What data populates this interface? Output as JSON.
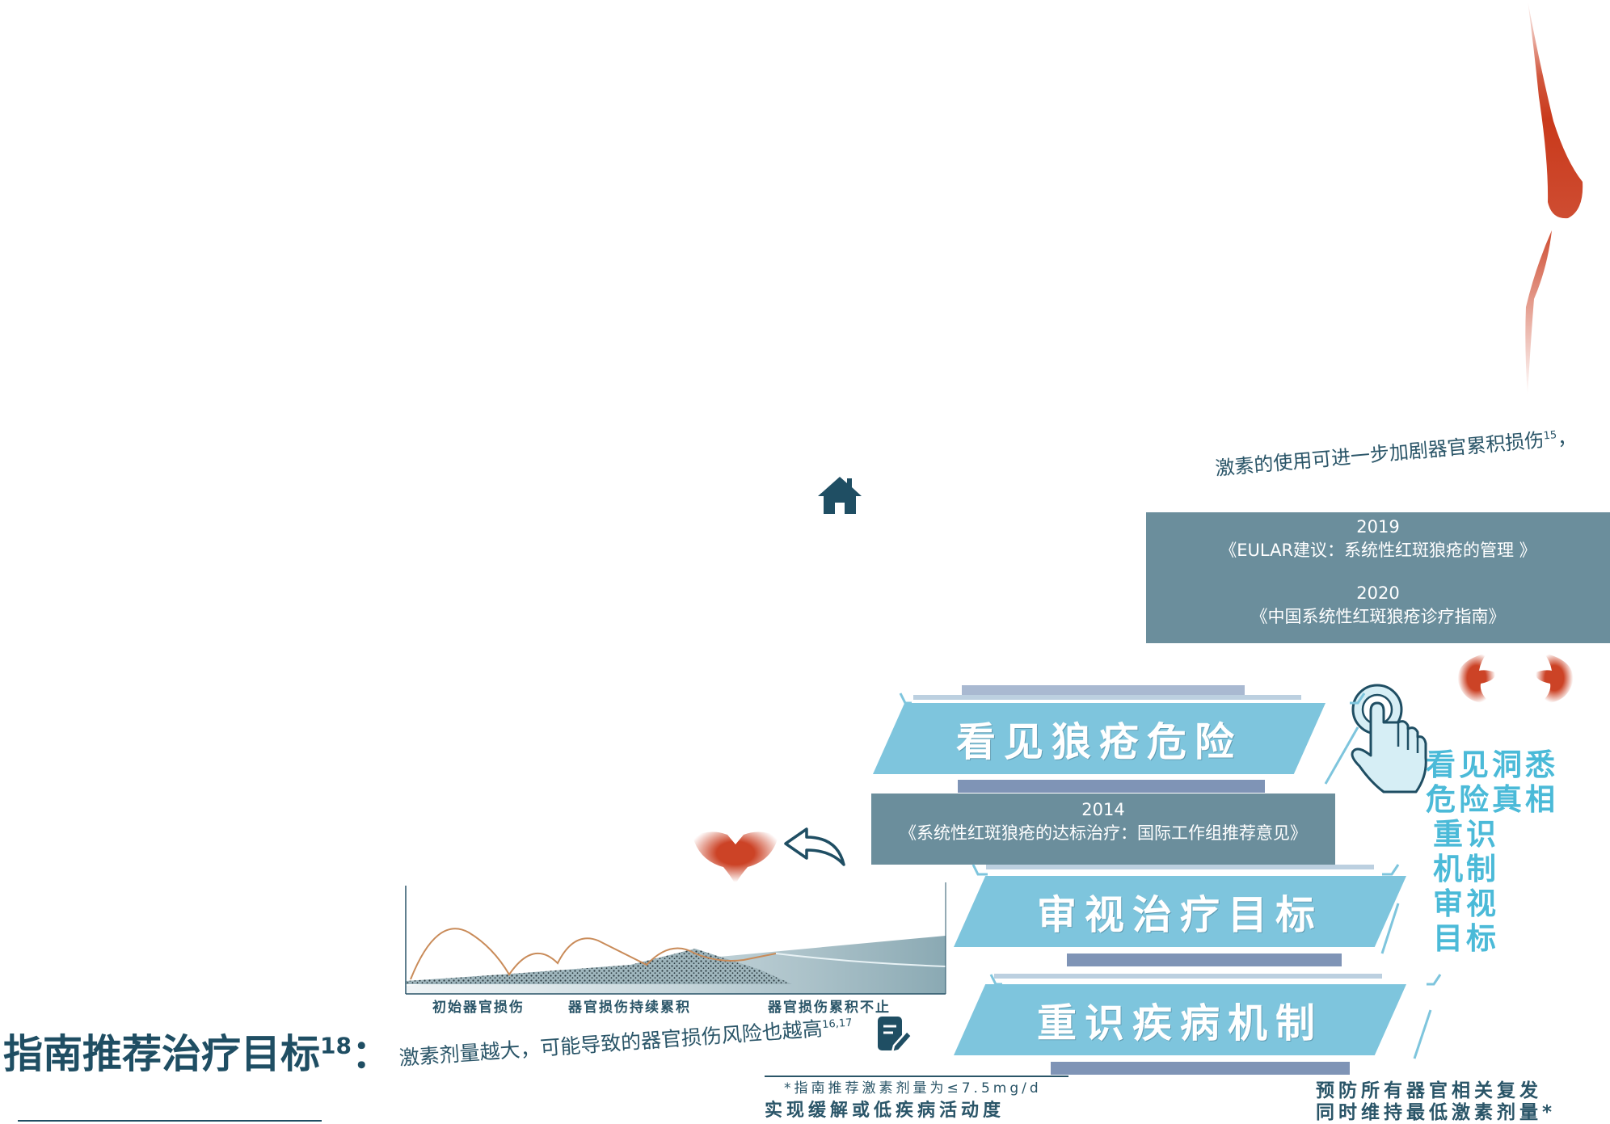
{
  "header_note": {
    "text": "激素的使用可进一步加剧器官累积损伤",
    "ref": "15",
    "tail": "，"
  },
  "guidelines": [
    {
      "year": "2019",
      "name": "《EULAR建议：系统性红斑狼疮的管理 》"
    },
    {
      "year": "2020",
      "name": "《中国系统性红斑狼疮诊疗指南》"
    },
    {
      "year": "2014",
      "name": "《系统性红斑狼疮的达标治疗：国际工作组推荐意见》"
    }
  ],
  "steps": [
    {
      "label": "看见狼疮危险"
    },
    {
      "label": "审视治疗目标"
    },
    {
      "label": "重识疾病机制"
    }
  ],
  "side_text": {
    "line1": "看见洞悉",
    "line2": "危险真相",
    "col_a": [
      "重",
      "机",
      "审",
      "目"
    ],
    "col_b": [
      "识",
      "制",
      "视",
      "标"
    ]
  },
  "bottom_right": {
    "line1": "预防所有器官相关复发",
    "line2": "同时维持最低激素剂量*"
  },
  "bottom_mid": {
    "note": "*指南推荐激素剂量为≤7.5mg/d",
    "line": "实现缓解或低疾病活动度"
  },
  "title": {
    "text": "指南推荐治疗目标",
    "ref": "18",
    "tail": "："
  },
  "rising_note": {
    "text": "激素剂量越大，可能导致的器官损伤风险也越高",
    "ref": "16,17"
  },
  "chart_data": {
    "type": "area",
    "categories": [
      "初始器官损伤",
      "器官损伤持续累积",
      "器官损伤累积不止"
    ],
    "title": "",
    "xlabel": "",
    "ylabel": "",
    "series": [],
    "grid": false
  },
  "icons": {
    "home": "home-icon",
    "back": "back-arrow-icon",
    "hand": "tap-hand-icon",
    "edit": "edit-icon"
  },
  "colors": {
    "accent": "#7ec5dd",
    "guideline_box": "#6b8e9c",
    "dark_text": "#1f4e63",
    "red": "#c9391b"
  }
}
